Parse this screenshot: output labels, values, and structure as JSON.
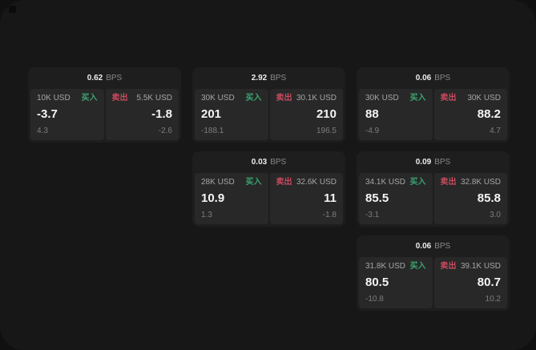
{
  "labels": {
    "bps_unit": "BPS",
    "buy": "买入",
    "sell": "卖出"
  },
  "colors": {
    "buy_accent": "#3da372",
    "sell_accent": "#c94a5f",
    "page_bg": "#171717",
    "card_bg": "#1e1e1e",
    "panel_bg": "#282828"
  },
  "cards": [
    {
      "row": 1,
      "col": 1,
      "bps": "0.62",
      "buy": {
        "size": "10K USD",
        "value": "-3.7",
        "sub": "4.3"
      },
      "sell": {
        "size": "5.5K USD",
        "value": "-1.8",
        "sub": "-2.6"
      }
    },
    {
      "row": 1,
      "col": 2,
      "bps": "2.92",
      "buy": {
        "size": "30K USD",
        "value": "201",
        "sub": "-188.1"
      },
      "sell": {
        "size": "30.1K USD",
        "value": "210",
        "sub": "196.5"
      }
    },
    {
      "row": 1,
      "col": 3,
      "bps": "0.06",
      "buy": {
        "size": "30K USD",
        "value": "88",
        "sub": "-4.9"
      },
      "sell": {
        "size": "30K USD",
        "value": "88.2",
        "sub": "4.7"
      }
    },
    {
      "row": 2,
      "col": 2,
      "bps": "0.03",
      "buy": {
        "size": "28K USD",
        "value": "10.9",
        "sub": "1.3"
      },
      "sell": {
        "size": "32.6K USD",
        "value": "11",
        "sub": "-1.8"
      }
    },
    {
      "row": 2,
      "col": 3,
      "bps": "0.09",
      "buy": {
        "size": "34.1K USD",
        "value": "85.5",
        "sub": "-3.1"
      },
      "sell": {
        "size": "32.8K USD",
        "value": "85.8",
        "sub": "3.0"
      }
    },
    {
      "row": 3,
      "col": 3,
      "bps": "0.06",
      "buy": {
        "size": "31.8K USD",
        "value": "80.5",
        "sub": "-10.8"
      },
      "sell": {
        "size": "39.1K USD",
        "value": "80.7",
        "sub": "10.2"
      }
    }
  ]
}
